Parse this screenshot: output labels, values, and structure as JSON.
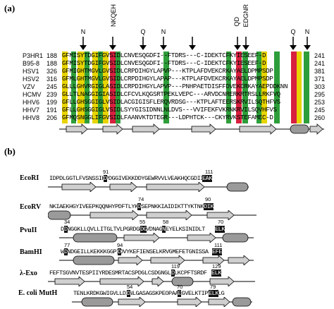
{
  "panel_a": {
    "label": "(a)",
    "top_markers": [
      {
        "text": "N"
      },
      {
        "text": "NKQEH"
      },
      {
        "text": "Q"
      },
      {
        "text": "N"
      },
      {
        "text": ""
      },
      {
        "text": "QD"
      },
      {
        "text": "EDGNR"
      },
      {
        "text": "Q"
      },
      {
        "text": "N"
      }
    ],
    "rows": [
      {
        "name": "P3HR1",
        "start": "188",
        "seq": "GFMISYTDGIFGVSIDLCNVESQGDFI--FTDRS---C-IDEKTCFKYIESEEF-D",
        "end": "241"
      },
      {
        "name": "B95-8",
        "start": "188",
        "seq": "GFMISYTDGIFGVSIDLCNVESQGDFI--FTDRS---C-IDEKTCFKYIESEEF-D",
        "end": "241"
      },
      {
        "name": "HSV1",
        "start": "326",
        "seq": "GFMIGHTMGVLGVSIDLCRPDIHGYLAPVP---KTPLAFDVEKCRKAYAELDPMPSDP",
        "end": "381"
      },
      {
        "name": "HSV2",
        "start": "316",
        "seq": "GFMLGHTMGVLGVSIDLCRPDIHGYLAPAP---KTPLAFDVEKCRKAYAELDPMPSDP",
        "end": "371"
      },
      {
        "name": "VZV",
        "start": "245",
        "seq": "GLLLGHVRGIGLASIDLCRPDIHGYLAPVP---PNHPAETDISFFDVEKCRKAYAEPDDKNN",
        "end": "303"
      },
      {
        "name": "HCMV",
        "start": "239",
        "seq": "GLLTLNAGGIGIASIDLCFCVLKQGSRTPEKLVEPC---ARVDCNRERKRTRSLLRKFVQ",
        "end": "295"
      },
      {
        "name": "HHV6",
        "start": "199",
        "seq": "GFLLGHSGGIGLVSIDLACGIGISFLERQVRDSG---KTPLAFTEERSKRVILSQTHFVS",
        "end": "253"
      },
      {
        "name": "HHV7",
        "start": "191",
        "seq": "GFLLGHSGGIGLVSIDLSYYGISIDNNLNLDVS---VVIFEKFVKRNKRVILSQVHFVS",
        "end": "245"
      },
      {
        "name": "HHV8",
        "start": "206",
        "seq": "GFMQSNGGLIFGVSIDLFAANVKTDTEGR---LDPHTCK---CKYRVKSTEFAMEC-D",
        "end": "260"
      }
    ]
  },
  "panel_b": {
    "label": "(b)",
    "enzymes": [
      {
        "name": "EcoRI",
        "seq": "IDPDLGGTLFVSNSSIKPDGGIVEKKDDYGEWRVVLVEAKHQCGDII",
        "sites": [
          {
            "pos": "91",
            "res": "D"
          },
          {
            "pos": "111",
            "res": "EAK"
          }
        ]
      },
      {
        "name": "EcoRV",
        "seq": "NKIAEKHGYIVEEPKQQNHYPDFTLYKPSEPNKKIAIDIKTTYKTNKE",
        "sites": [
          {
            "pos": "74",
            "res": "D"
          },
          {
            "pos": "90",
            "res": "DIK"
          }
        ]
      },
      {
        "name": "PvuII",
        "seq": "DDNGGKLLQVLLITGLTVLPGRDGNAVDNAGQEYELKSINIDLT",
        "sites": [
          {
            "pos": "34",
            "res": "D"
          },
          {
            "pos": "55",
            "res": "DG"
          },
          {
            "pos": "58",
            "res": "N"
          },
          {
            "pos": "70",
            "res": "ELK"
          }
        ]
      },
      {
        "name": "BamHI",
        "seq": "WNNDGEILLKEKKKGGPIDVYKEFIENSELKRVGMEFETGNISSA",
        "sites": [
          {
            "pos": "77",
            "res": "D"
          },
          {
            "pos": "94",
            "res": "D"
          },
          {
            "pos": "111",
            "res": "EFE"
          }
        ]
      },
      {
        "name": "λ-Exo",
        "seq": "FEFTSGVNVTESPIIYRDESMRTACSPDGLCSDGNGLELKCPFTSRDF",
        "sites": [
          {
            "pos": "119",
            "res": "D"
          },
          {
            "pos": "129",
            "res": "ELK"
          }
        ]
      },
      {
        "name": "E. coli MutH",
        "seq": "TENLKRDKGWIGVLLDINLGASAGSKPEOPAALGVELKTIPVDSLG",
        "sites": [
          {
            "pos": "54",
            "res": "D"
          },
          {
            "pos": "70",
            "res": "E"
          },
          {
            "pos": "79",
            "res": "ELK"
          }
        ]
      }
    ]
  },
  "colors": {
    "yellow": "#e8d400",
    "green": "#2e9e3a",
    "red": "#d8203f",
    "arrow_fill": "#cfcfcf",
    "helix_fill": "#9a9a9a"
  }
}
